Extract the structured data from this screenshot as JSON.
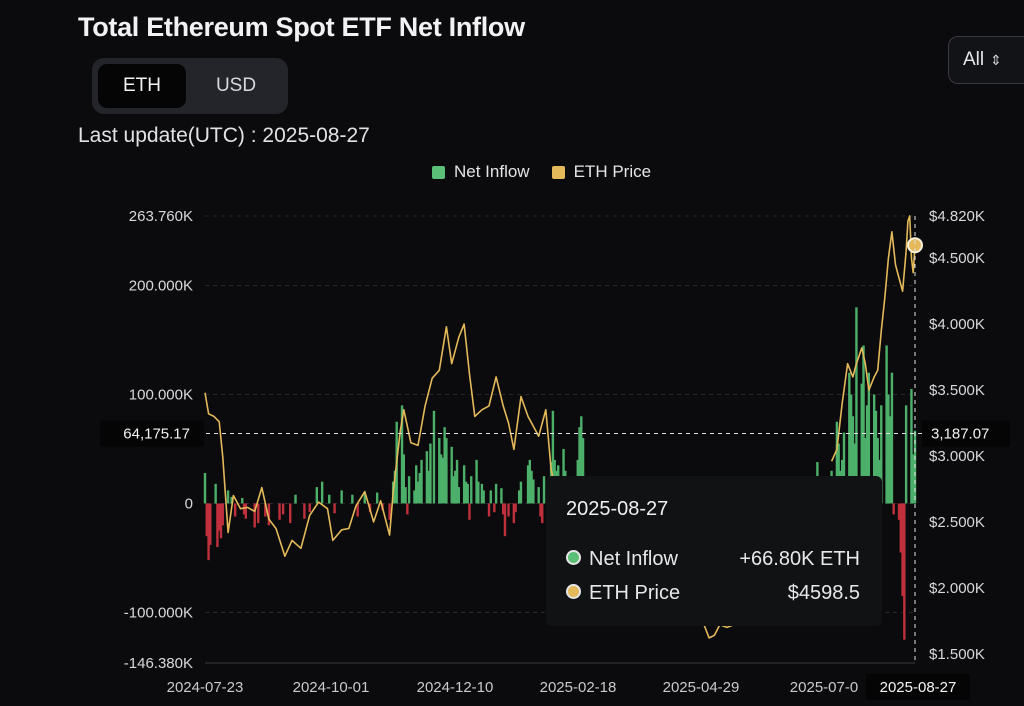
{
  "title": "Total Ethereum Spot ETF Net Inflow",
  "unit_toggle": {
    "options": [
      "ETH",
      "USD"
    ],
    "selected": "ETH"
  },
  "range_select": {
    "value": "All"
  },
  "last_update": "Last update(UTC) : 2025-08-27",
  "colors": {
    "inflow": "#4caf6a",
    "outflow": "#c0303c",
    "price": "#e3b95a",
    "background": "#0b0b0d"
  },
  "tooltip": {
    "date": "2025-08-27",
    "rows": [
      {
        "label": "Net Inflow",
        "value": "+66.80K ETH"
      },
      {
        "label": "ETH Price",
        "value": "$4598.5"
      }
    ]
  },
  "crosshair": {
    "left_value": "64,175.17",
    "right_value": "3,187.07"
  },
  "chart_data": {
    "type": "bar",
    "title": "Total Ethereum Spot ETF Net Inflow",
    "legend": [
      "Net Inflow",
      "ETH Price"
    ],
    "legend_position": "top-center",
    "grid": true,
    "left_axis": {
      "ticks": [
        "263.760K",
        "200.000K",
        "100.000K",
        "0",
        "-100.000K",
        "-146.380K"
      ],
      "ylim": [
        -146380,
        263760
      ]
    },
    "right_axis": {
      "ticks": [
        "$4.820K",
        "$4.500K",
        "$4.000K",
        "$3.500K",
        "$3.000K",
        "$2.500K",
        "$2.000K",
        "$1.500K"
      ],
      "ylim": [
        1430,
        4820
      ]
    },
    "x_ticks": [
      "2024-07-23",
      "2024-10-01",
      "2024-12-10",
      "2025-02-18",
      "2025-04-29",
      "2025-07-0",
      "2025-08-27"
    ],
    "date_range": [
      "2024-07-23",
      "2025-08-27"
    ],
    "series": [
      {
        "name": "Net Inflow",
        "kind": "bar",
        "unit": "ETH",
        "points": [
          [
            "2024-07-23",
            28000
          ],
          [
            "2024-07-24",
            -30000
          ],
          [
            "2024-07-25",
            -52000
          ],
          [
            "2024-07-26",
            -38000
          ],
          [
            "2024-07-29",
            18000
          ],
          [
            "2024-07-30",
            -40000
          ],
          [
            "2024-07-31",
            -25000
          ],
          [
            "2024-08-01",
            -32000
          ],
          [
            "2024-08-02",
            -20000
          ],
          [
            "2024-08-05",
            12000
          ],
          [
            "2024-08-07",
            6000
          ],
          [
            "2024-08-09",
            -12000
          ],
          [
            "2024-08-13",
            5000
          ],
          [
            "2024-08-14",
            -10000
          ],
          [
            "2024-08-15",
            -14000
          ],
          [
            "2024-08-20",
            -22000
          ],
          [
            "2024-08-22",
            -18000
          ],
          [
            "2024-08-26",
            -12000
          ],
          [
            "2024-08-28",
            -20000
          ],
          [
            "2024-09-03",
            -15000
          ],
          [
            "2024-09-05",
            -10000
          ],
          [
            "2024-09-09",
            -18000
          ],
          [
            "2024-09-12",
            8000
          ],
          [
            "2024-09-17",
            -14000
          ],
          [
            "2024-09-20",
            -8000
          ],
          [
            "2024-09-24",
            15000
          ],
          [
            "2024-09-27",
            20000
          ],
          [
            "2024-10-01",
            8000
          ],
          [
            "2024-10-04",
            -9000
          ],
          [
            "2024-10-08",
            12000
          ],
          [
            "2024-10-14",
            8000
          ],
          [
            "2024-10-17",
            -12000
          ],
          [
            "2024-10-21",
            10000
          ],
          [
            "2024-10-24",
            -8000
          ],
          [
            "2024-10-28",
            10000
          ],
          [
            "2024-10-31",
            -6000
          ],
          [
            "2024-11-04",
            -15000
          ],
          [
            "2024-11-06",
            20000
          ],
          [
            "2024-11-07",
            30000
          ],
          [
            "2024-11-08",
            75000
          ],
          [
            "2024-11-11",
            90000
          ],
          [
            "2024-11-12",
            45000
          ],
          [
            "2024-11-13",
            15000
          ],
          [
            "2024-11-14",
            -10000
          ],
          [
            "2024-11-15",
            25000
          ],
          [
            "2024-11-18",
            12000
          ],
          [
            "2024-11-19",
            35000
          ],
          [
            "2024-11-20",
            20000
          ],
          [
            "2024-11-21",
            28000
          ],
          [
            "2024-11-22",
            40000
          ],
          [
            "2024-11-25",
            48000
          ],
          [
            "2024-11-26",
            30000
          ],
          [
            "2024-11-27",
            55000
          ],
          [
            "2024-11-29",
            85000
          ],
          [
            "2024-12-02",
            60000
          ],
          [
            "2024-12-03",
            45000
          ],
          [
            "2024-12-04",
            42000
          ],
          [
            "2024-12-05",
            70000
          ],
          [
            "2024-12-06",
            60000
          ],
          [
            "2024-12-09",
            52000
          ],
          [
            "2024-12-10",
            25000
          ],
          [
            "2024-12-11",
            30000
          ],
          [
            "2024-12-12",
            40000
          ],
          [
            "2024-12-13",
            15000
          ],
          [
            "2024-12-16",
            35000
          ],
          [
            "2024-12-17",
            20000
          ],
          [
            "2024-12-18",
            18000
          ],
          [
            "2024-12-19",
            -15000
          ],
          [
            "2024-12-20",
            25000
          ],
          [
            "2024-12-23",
            40000
          ],
          [
            "2024-12-24",
            20000
          ],
          [
            "2024-12-26",
            18000
          ],
          [
            "2024-12-27",
            12000
          ],
          [
            "2024-12-30",
            -12000
          ],
          [
            "2024-12-31",
            12000
          ],
          [
            "2025-01-02",
            -8000
          ],
          [
            "2025-01-03",
            18000
          ],
          [
            "2025-01-06",
            14000
          ],
          [
            "2025-01-07",
            -10000
          ],
          [
            "2025-01-08",
            -30000
          ],
          [
            "2025-01-10",
            -12000
          ],
          [
            "2025-01-13",
            -18000
          ],
          [
            "2025-01-14",
            -8000
          ],
          [
            "2025-01-16",
            12000
          ],
          [
            "2025-01-17",
            20000
          ],
          [
            "2025-01-21",
            35000
          ],
          [
            "2025-01-22",
            40000
          ],
          [
            "2025-01-23",
            30000
          ],
          [
            "2025-01-24",
            22000
          ],
          [
            "2025-01-27",
            15000
          ],
          [
            "2025-01-28",
            -12000
          ],
          [
            "2025-01-29",
            -18000
          ],
          [
            "2025-01-30",
            25000
          ],
          [
            "2025-02-03",
            38000
          ],
          [
            "2025-02-04",
            85000
          ],
          [
            "2025-02-05",
            40000
          ],
          [
            "2025-02-06",
            30000
          ],
          [
            "2025-02-07",
            35000
          ],
          [
            "2025-02-10",
            50000
          ],
          [
            "2025-02-11",
            30000
          ],
          [
            "2025-02-12",
            20000
          ],
          [
            "2025-02-13",
            18000
          ],
          [
            "2025-02-14",
            15000
          ],
          [
            "2025-02-18",
            40000
          ],
          [
            "2025-02-19",
            70000
          ],
          [
            "2025-02-20",
            80000
          ],
          [
            "2025-02-21",
            60000
          ],
          [
            "2025-02-24",
            -40000
          ],
          [
            "2025-05-14",
            20000
          ],
          [
            "2025-05-21",
            20000
          ],
          [
            "2025-06-16",
            12000
          ],
          [
            "2025-06-23",
            10000
          ],
          [
            "2025-06-26",
            18000
          ],
          [
            "2025-06-30",
            10000
          ],
          [
            "2025-07-03",
            38000
          ],
          [
            "2025-07-11",
            30000
          ],
          [
            "2025-07-14",
            75000
          ],
          [
            "2025-07-15",
            55000
          ],
          [
            "2025-07-16",
            30000
          ],
          [
            "2025-07-17",
            40000
          ],
          [
            "2025-07-18",
            65000
          ],
          [
            "2025-07-21",
            120000
          ],
          [
            "2025-07-22",
            100000
          ],
          [
            "2025-07-23",
            80000
          ],
          [
            "2025-07-24",
            55000
          ],
          [
            "2025-07-25",
            180000
          ],
          [
            "2025-07-28",
            110000
          ],
          [
            "2025-07-29",
            145000
          ],
          [
            "2025-07-30",
            60000
          ],
          [
            "2025-07-31",
            90000
          ],
          [
            "2025-08-01",
            120000
          ],
          [
            "2025-08-04",
            100000
          ],
          [
            "2025-08-05",
            85000
          ],
          [
            "2025-08-06",
            60000
          ],
          [
            "2025-08-07",
            40000
          ],
          [
            "2025-08-08",
            90000
          ],
          [
            "2025-08-11",
            145000
          ],
          [
            "2025-08-12",
            100000
          ],
          [
            "2025-08-13",
            80000
          ],
          [
            "2025-08-14",
            120000
          ],
          [
            "2025-08-15",
            -10000
          ],
          [
            "2025-08-18",
            -15000
          ],
          [
            "2025-08-19",
            -45000
          ],
          [
            "2025-08-20",
            -85000
          ],
          [
            "2025-08-21",
            -125000
          ],
          [
            "2025-08-22",
            90000
          ],
          [
            "2025-08-25",
            105000
          ],
          [
            "2025-08-26",
            45000
          ],
          [
            "2025-08-27",
            66800
          ]
        ]
      },
      {
        "name": "ETH Price",
        "kind": "line",
        "unit": "USD",
        "points": [
          [
            "2024-07-23",
            3480
          ],
          [
            "2024-07-25",
            3320
          ],
          [
            "2024-07-28",
            3300
          ],
          [
            "2024-07-31",
            3260
          ],
          [
            "2024-08-02",
            2990
          ],
          [
            "2024-08-05",
            2420
          ],
          [
            "2024-08-08",
            2700
          ],
          [
            "2024-08-12",
            2600
          ],
          [
            "2024-08-16",
            2610
          ],
          [
            "2024-08-20",
            2580
          ],
          [
            "2024-08-24",
            2760
          ],
          [
            "2024-08-28",
            2520
          ],
          [
            "2024-09-01",
            2450
          ],
          [
            "2024-09-06",
            2240
          ],
          [
            "2024-09-10",
            2360
          ],
          [
            "2024-09-15",
            2300
          ],
          [
            "2024-09-20",
            2550
          ],
          [
            "2024-09-25",
            2650
          ],
          [
            "2024-09-30",
            2600
          ],
          [
            "2024-10-03",
            2360
          ],
          [
            "2024-10-08",
            2440
          ],
          [
            "2024-10-12",
            2450
          ],
          [
            "2024-10-16",
            2620
          ],
          [
            "2024-10-21",
            2730
          ],
          [
            "2024-10-26",
            2500
          ],
          [
            "2024-10-30",
            2660
          ],
          [
            "2024-11-04",
            2400
          ],
          [
            "2024-11-06",
            2720
          ],
          [
            "2024-11-10",
            3190
          ],
          [
            "2024-11-12",
            3350
          ],
          [
            "2024-11-16",
            3100
          ],
          [
            "2024-11-20",
            3080
          ],
          [
            "2024-11-24",
            3380
          ],
          [
            "2024-11-28",
            3590
          ],
          [
            "2024-12-02",
            3650
          ],
          [
            "2024-12-06",
            3980
          ],
          [
            "2024-12-09",
            3700
          ],
          [
            "2024-12-13",
            3900
          ],
          [
            "2024-12-16",
            4000
          ],
          [
            "2024-12-19",
            3620
          ],
          [
            "2024-12-22",
            3300
          ],
          [
            "2024-12-26",
            3350
          ],
          [
            "2024-12-30",
            3380
          ],
          [
            "2025-01-03",
            3600
          ],
          [
            "2025-01-07",
            3380
          ],
          [
            "2025-01-10",
            3250
          ],
          [
            "2025-01-13",
            3050
          ],
          [
            "2025-01-17",
            3450
          ],
          [
            "2025-01-21",
            3300
          ],
          [
            "2025-01-27",
            3150
          ],
          [
            "2025-01-31",
            3350
          ],
          [
            "2025-02-03",
            2900
          ],
          [
            "2025-02-06",
            2700
          ],
          [
            "2025-02-11",
            2650
          ],
          [
            "2025-02-14",
            2720
          ],
          [
            "2025-02-17",
            2750
          ],
          [
            "2025-02-19",
            2700
          ],
          [
            "2025-02-21",
            2820
          ],
          [
            "2025-02-24",
            2500
          ],
          [
            "2025-04-29",
            1760
          ],
          [
            "2025-05-03",
            1620
          ],
          [
            "2025-05-06",
            1640
          ],
          [
            "2025-05-09",
            1720
          ],
          [
            "2025-05-13",
            1700
          ],
          [
            "2025-05-17",
            1720
          ],
          [
            "2025-05-20",
            1780
          ],
          [
            "2025-07-11",
            2960
          ],
          [
            "2025-07-14",
            3050
          ],
          [
            "2025-07-17",
            3400
          ],
          [
            "2025-07-20",
            3700
          ],
          [
            "2025-07-23",
            3600
          ],
          [
            "2025-07-25",
            3700
          ],
          [
            "2025-07-28",
            3820
          ],
          [
            "2025-07-30",
            3700
          ],
          [
            "2025-08-01",
            3500
          ],
          [
            "2025-08-04",
            3600
          ],
          [
            "2025-08-06",
            3650
          ],
          [
            "2025-08-08",
            3950
          ],
          [
            "2025-08-10",
            4200
          ],
          [
            "2025-08-12",
            4500
          ],
          [
            "2025-08-14",
            4700
          ],
          [
            "2025-08-16",
            4450
          ],
          [
            "2025-08-18",
            4350
          ],
          [
            "2025-08-20",
            4250
          ],
          [
            "2025-08-22",
            4550
          ],
          [
            "2025-08-23",
            4780
          ],
          [
            "2025-08-24",
            4820
          ],
          [
            "2025-08-25",
            4500
          ],
          [
            "2025-08-26",
            4390
          ],
          [
            "2025-08-27",
            4598.5
          ]
        ]
      }
    ]
  }
}
